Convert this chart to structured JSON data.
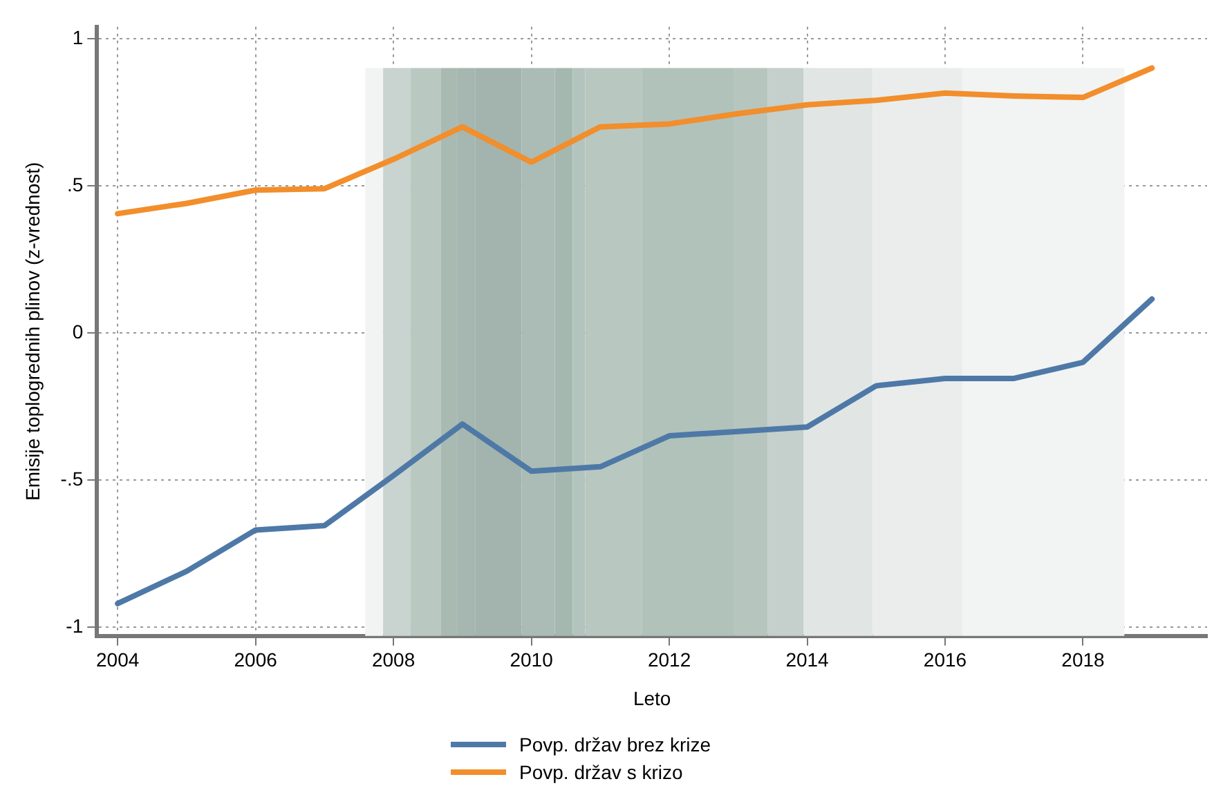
{
  "chart_data": {
    "type": "line",
    "xlabel": "Leto",
    "ylabel": "Emisije toplogrednih plinov (z-vrednost)",
    "x": [
      2004,
      2005,
      2006,
      2007,
      2008,
      2009,
      2010,
      2011,
      2012,
      2013,
      2014,
      2015,
      2016,
      2017,
      2018,
      2019
    ],
    "series": [
      {
        "name": "Povp. držav brez krize",
        "color": "#4e79a7",
        "values": [
          -0.92,
          -0.81,
          -0.67,
          -0.655,
          -0.485,
          -0.31,
          -0.47,
          -0.455,
          -0.35,
          -0.335,
          -0.32,
          -0.18,
          -0.155,
          -0.155,
          -0.1,
          0.115
        ]
      },
      {
        "name": "Povp. držav s krizo",
        "color": "#f28e2b",
        "values": [
          0.405,
          0.44,
          0.485,
          0.49,
          0.59,
          0.7,
          0.58,
          0.7,
          0.71,
          0.745,
          0.775,
          0.79,
          0.815,
          0.805,
          0.8,
          0.9
        ]
      }
    ],
    "xlim": [
      2003.7,
      2019.8
    ],
    "xticks": [
      2004,
      2006,
      2008,
      2010,
      2012,
      2014,
      2016,
      2018
    ],
    "ylim": [
      -1.03,
      1.04
    ],
    "yticks": [
      {
        "value": -1,
        "label": "-1"
      },
      {
        "value": -0.5,
        "label": "-.5"
      },
      {
        "value": 0,
        "label": "0"
      },
      {
        "value": 0.5,
        "label": ".5"
      },
      {
        "value": 1,
        "label": "1"
      }
    ],
    "bands": [
      {
        "axis": "x",
        "from": 2007.59,
        "to": 2007.85,
        "color": "#f2f4f3"
      },
      {
        "axis": "x",
        "from": 2007.85,
        "to": 2008.25,
        "color": "#c9d3cf"
      },
      {
        "axis": "x",
        "from": 2008.25,
        "to": 2008.69,
        "color": "#bac8c2"
      },
      {
        "axis": "x",
        "from": 2008.69,
        "to": 2008.93,
        "color": "#a9bab3"
      },
      {
        "axis": "x",
        "from": 2008.93,
        "to": 2009.19,
        "color": "#a5b7b0"
      },
      {
        "axis": "x",
        "from": 2009.19,
        "to": 2009.86,
        "color": "#a2b4ad"
      },
      {
        "axis": "x",
        "from": 2009.86,
        "to": 2010.34,
        "color": "#aabcb5"
      },
      {
        "axis": "x",
        "from": 2010.34,
        "to": 2010.6,
        "color": "#a5b8b0"
      },
      {
        "axis": "x",
        "from": 2010.6,
        "to": 2010.78,
        "color": "#b3c3bd"
      },
      {
        "axis": "x",
        "from": 2010.78,
        "to": 2011.6,
        "color": "#b9c7c1"
      },
      {
        "axis": "x",
        "from": 2011.6,
        "to": 2012.95,
        "color": "#b1c2bb"
      },
      {
        "axis": "x",
        "from": 2012.95,
        "to": 2013.43,
        "color": "#b7c5bf"
      },
      {
        "axis": "x",
        "from": 2013.43,
        "to": 2013.95,
        "color": "#c5cfcb"
      },
      {
        "axis": "x",
        "from": 2013.95,
        "to": 2014.95,
        "color": "#e1e6e4"
      },
      {
        "axis": "x",
        "from": 2014.95,
        "to": 2016.25,
        "color": "#eaedec"
      },
      {
        "axis": "x",
        "from": 2016.25,
        "to": 2018.6,
        "color": "#f2f3f3"
      }
    ],
    "grid": true,
    "legend": "bottom",
    "marker": "none",
    "line_style": "solid"
  }
}
